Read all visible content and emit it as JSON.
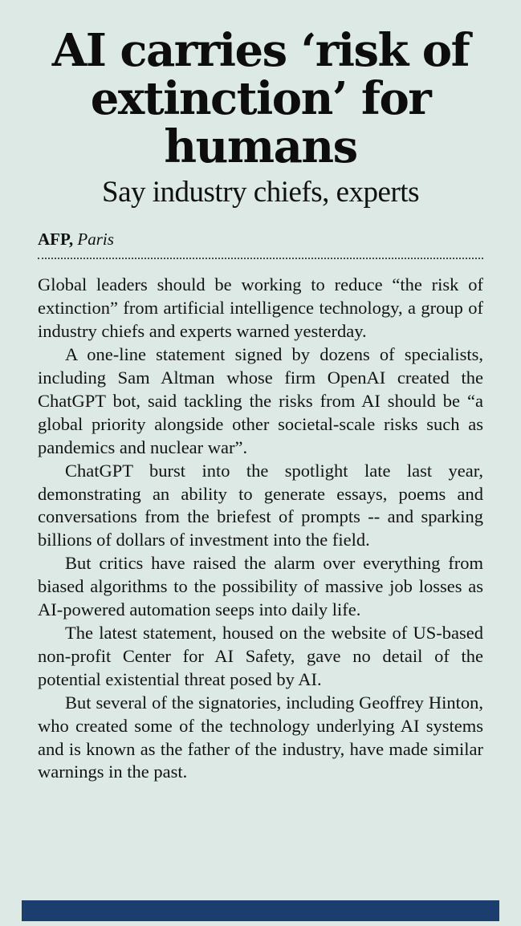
{
  "colors": {
    "page_background": "#dde9e4",
    "headline_text": "#0d0d0d",
    "body_text": "#131313",
    "bottom_bar": "#1c3e6e"
  },
  "article": {
    "headline": "AI carries ‘risk of extinction’ for humans",
    "subheadline": "Say industry chiefs, experts",
    "byline": {
      "agency": "AFP,",
      "location": "Paris"
    },
    "paragraphs": [
      "Global leaders should be working to reduce “the risk of extinction” from artificial intelligence technology, a group of industry chiefs and experts warned yesterday.",
      "A one-line statement signed by dozens of specialists, including Sam Altman whose firm OpenAI created the ChatGPT bot, said tackling the risks from AI should be “a global priority alongside other societal-scale risks such as pandemics and nuclear war”.",
      "ChatGPT burst into the spotlight late last year, demonstrating an ability to generate essays, poems and conversations from the briefest of prompts -- and sparking billions of dollars of investment into the field.",
      "But critics have raised the alarm over everything from biased algorithms to the possibility of massive job losses as AI-powered automation seeps into daily life.",
      "The latest statement, housed on the website of US-based non-profit Center for AI Safety, gave no detail of the potential existential threat posed by AI.",
      "But several of the signatories, including Geoffrey Hinton, who created some of the technology underlying AI systems and is known as the father of the industry, have made similar warnings in the past."
    ]
  }
}
